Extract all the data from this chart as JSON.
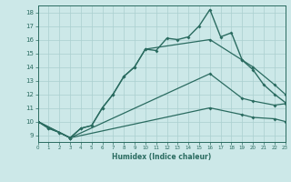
{
  "xlabel": "Humidex (Indice chaleur)",
  "bg_color": "#cce8e8",
  "line_color": "#2a6b60",
  "grid_color": "#aacfcf",
  "xlim": [
    0,
    23
  ],
  "ylim": [
    8.5,
    18.5
  ],
  "xtick_vals": [
    0,
    1,
    2,
    3,
    4,
    5,
    6,
    7,
    8,
    9,
    10,
    11,
    12,
    13,
    14,
    15,
    16,
    17,
    18,
    19,
    20,
    21,
    22,
    23
  ],
  "ytick_vals": [
    9,
    10,
    11,
    12,
    13,
    14,
    15,
    16,
    17,
    18
  ],
  "main_x": [
    0,
    1,
    2,
    3,
    4,
    5,
    6,
    7,
    8,
    9,
    10,
    11,
    12,
    13,
    14,
    15,
    16,
    17,
    18,
    19,
    20,
    21,
    22,
    23
  ],
  "main_y": [
    10.0,
    9.5,
    9.2,
    8.8,
    9.5,
    9.7,
    11.0,
    12.0,
    13.3,
    14.0,
    15.3,
    15.2,
    16.1,
    16.0,
    16.2,
    17.0,
    18.2,
    16.2,
    16.5,
    14.5,
    13.8,
    12.7,
    12.0,
    11.4
  ],
  "line2_x": [
    0,
    1,
    2,
    3,
    4,
    5,
    6,
    7,
    8,
    9,
    10,
    16,
    19,
    20,
    22,
    23
  ],
  "line2_y": [
    10.0,
    9.5,
    9.2,
    8.8,
    9.5,
    9.7,
    11.0,
    12.0,
    13.3,
    14.0,
    15.3,
    16.0,
    14.5,
    14.0,
    12.7,
    12.0
  ],
  "line3_x": [
    0,
    3,
    16,
    19,
    20,
    22,
    23
  ],
  "line3_y": [
    10.0,
    8.8,
    13.5,
    11.7,
    11.5,
    11.2,
    11.3
  ],
  "line4_x": [
    0,
    3,
    16,
    19,
    20,
    22,
    23
  ],
  "line4_y": [
    10.0,
    8.8,
    11.0,
    10.5,
    10.3,
    10.2,
    10.0
  ]
}
